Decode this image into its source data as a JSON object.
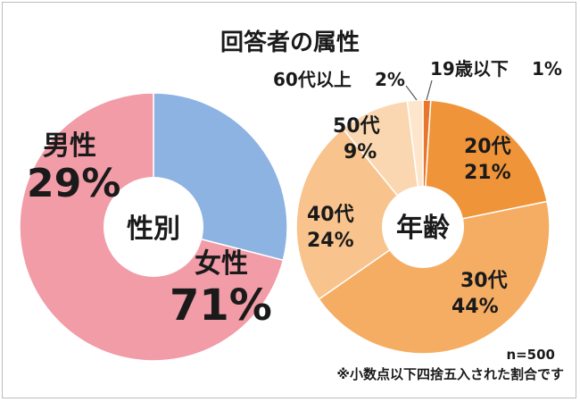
{
  "title": "回答者の属性",
  "chart_data": [
    {
      "type": "pie",
      "center_label": "性別",
      "slices": [
        {
          "name": "男性",
          "value": 29,
          "label": "29%",
          "color": "#8db3e2"
        },
        {
          "name": "女性",
          "value": 71,
          "label": "71%",
          "color": "#f19ca7"
        }
      ]
    },
    {
      "type": "pie",
      "center_label": "年齢",
      "slices": [
        {
          "name": "19歳以下",
          "value": 1,
          "label": "1%",
          "color": "#e8762c"
        },
        {
          "name": "20代",
          "value": 21,
          "label": "21%",
          "color": "#f0943a"
        },
        {
          "name": "30代",
          "value": 44,
          "label": "44%",
          "color": "#f5ad63"
        },
        {
          "name": "40代",
          "value": 24,
          "label": "24%",
          "color": "#f8c38c"
        },
        {
          "name": "50代",
          "value": 9,
          "label": "9%",
          "color": "#fad7b0"
        },
        {
          "name": "60代以上",
          "value": 2,
          "label": "2%",
          "color": "#fde6cc"
        }
      ]
    }
  ],
  "footnote": {
    "n": "n=500",
    "note": "※小数点以下四捨五入された割合です"
  }
}
